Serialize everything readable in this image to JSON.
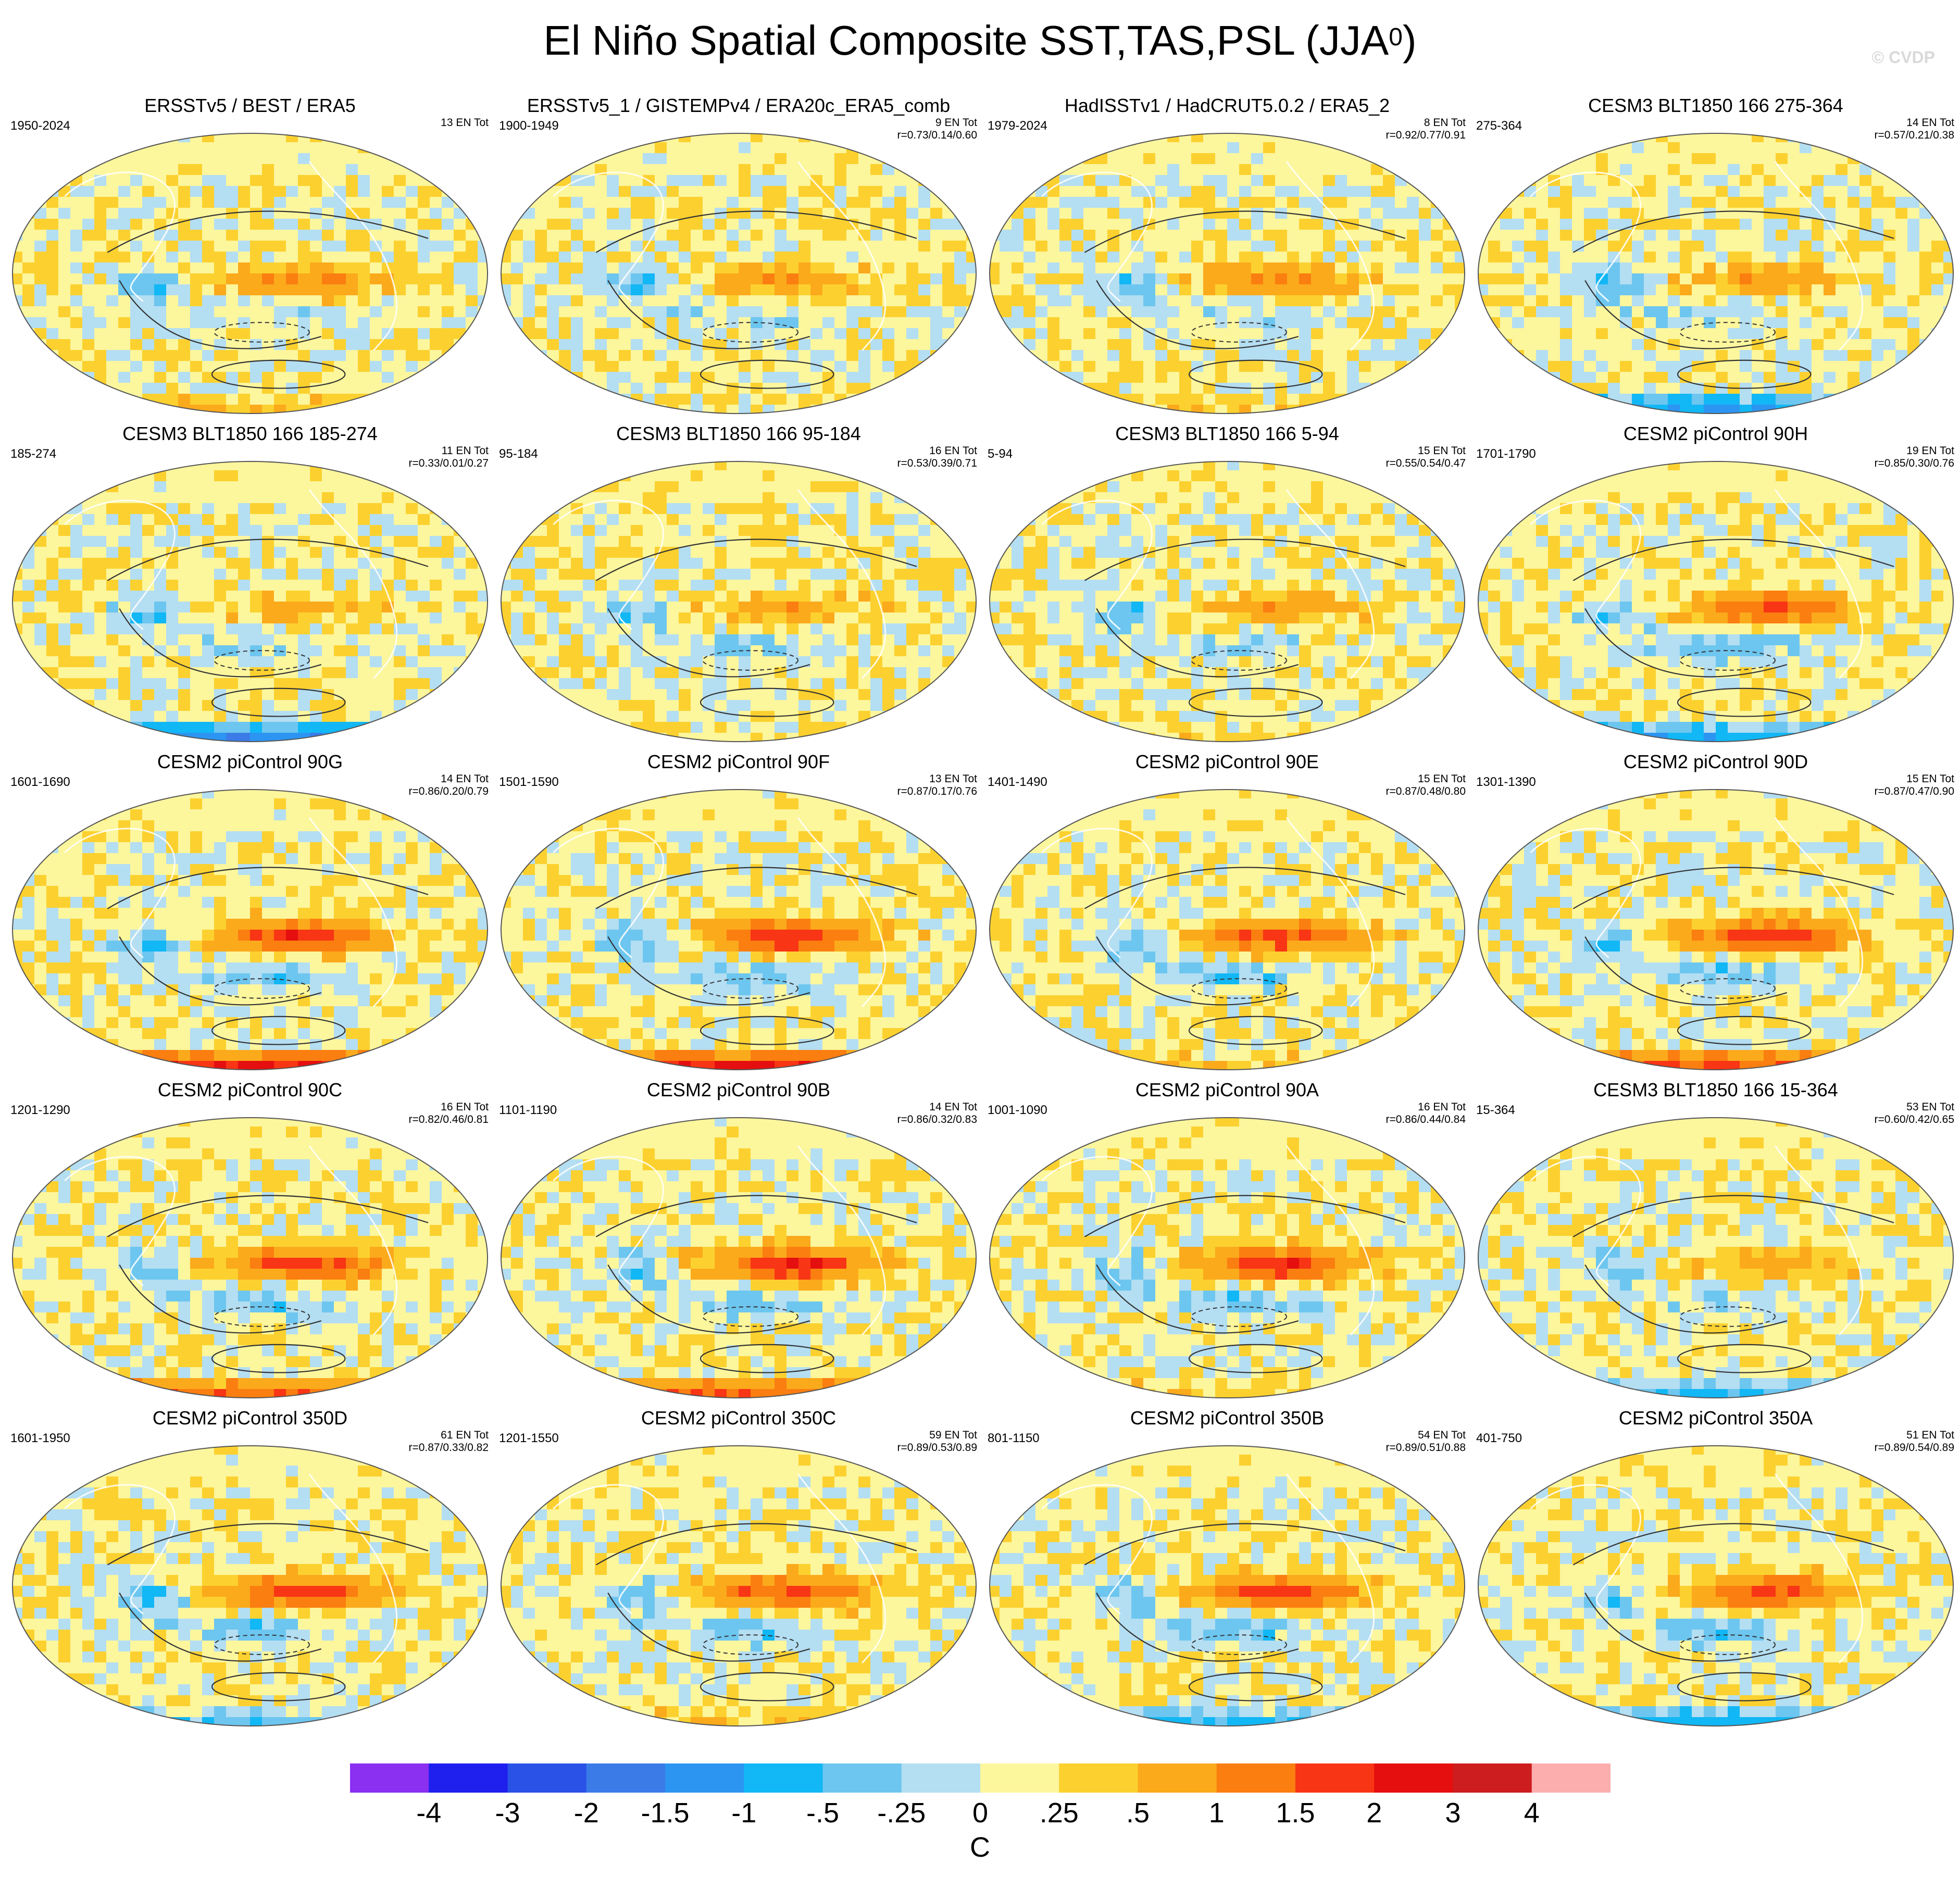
{
  "title": {
    "main": "El Niño Spatial Composite SST,TAS,PSL (JJA",
    "sup": "0",
    "close": ")"
  },
  "credit": "© CVDP",
  "colorbar": {
    "unit": "C",
    "labels": [
      "-4",
      "-3",
      "-2",
      "-1.5",
      "-1",
      "-.5",
      "-.25",
      "0",
      ".25",
      ".5",
      "1",
      "1.5",
      "2",
      "3",
      "4"
    ],
    "colors": [
      "#8b2ff0",
      "#1f1fee",
      "#2a52e6",
      "#3a7be8",
      "#2c95f2",
      "#12b7f5",
      "#6dc6ef",
      "#b4def2",
      "#fcf69d",
      "#fcd12f",
      "#fbaa1c",
      "#fb7e10",
      "#f83514",
      "#e50f0f",
      "#cd1d1f",
      "#fcaeaf"
    ]
  },
  "chart_data": [
    {
      "type": "heatmap",
      "title": "ERSSTv5 / BEST / ERA5",
      "period": "1950-2024",
      "count": "13 EN Tot",
      "corr": "",
      "pattern": 0.95,
      "southern": 0.3
    },
    {
      "type": "heatmap",
      "title": "ERSSTv5_1 / GISTEMPv4 / ERA20c_ERA5_comb",
      "period": "1900-1949",
      "count": "9 EN Tot",
      "corr": "r=0.73/0.14/0.60",
      "pattern": 0.75,
      "southern": 0.0
    },
    {
      "type": "heatmap",
      "title": "HadISSTv1 / HadCRUT5.0.2 / ERA5_2",
      "period": "1979-2024",
      "count": "8 EN Tot",
      "corr": "r=0.92/0.77/0.91",
      "pattern": 0.85,
      "southern": 0.2
    },
    {
      "type": "heatmap",
      "title": "CESM3 BLT1850 166 275-364",
      "period": "275-364",
      "count": "14 EN Tot",
      "corr": "r=0.57/0.21/0.38",
      "pattern": 0.7,
      "southern": -0.9
    },
    {
      "type": "heatmap",
      "title": "CESM3 BLT1850 166 185-274",
      "period": "185-274",
      "count": "11 EN Tot",
      "corr": "r=0.33/0.01/0.27",
      "pattern": 0.45,
      "southern": -1.2
    },
    {
      "type": "heatmap",
      "title": "CESM3 BLT1850 166 95-184",
      "period": "95-184",
      "count": "16 EN Tot",
      "corr": "r=0.53/0.39/0.71",
      "pattern": 0.6,
      "southern": 0.1
    },
    {
      "type": "heatmap",
      "title": "CESM3 BLT1850 166 5-94",
      "period": "5-94",
      "count": "15 EN Tot",
      "corr": "r=0.55/0.54/0.47",
      "pattern": 0.65,
      "southern": 0.1
    },
    {
      "type": "heatmap",
      "title": "CESM2 piControl 90H",
      "period": "1701-1790",
      "count": "19 EN Tot",
      "corr": "r=0.85/0.30/0.76",
      "pattern": 1.35,
      "southern": -0.8
    },
    {
      "type": "heatmap",
      "title": "CESM2 piControl 90G",
      "period": "1601-1690",
      "count": "14 EN Tot",
      "corr": "r=0.86/0.20/0.79",
      "pattern": 1.6,
      "southern": 1.5
    },
    {
      "type": "heatmap",
      "title": "CESM2 piControl 90F",
      "period": "1501-1590",
      "count": "13 EN Tot",
      "corr": "r=0.87/0.17/0.76",
      "pattern": 1.6,
      "southern": 1.6
    },
    {
      "type": "heatmap",
      "title": "CESM2 piControl 90E",
      "period": "1401-1490",
      "count": "15 EN Tot",
      "corr": "r=0.87/0.48/0.80",
      "pattern": 1.5,
      "southern": 0.2
    },
    {
      "type": "heatmap",
      "title": "CESM2 piControl 90D",
      "period": "1301-1390",
      "count": "15 EN Tot",
      "corr": "r=0.87/0.47/0.90",
      "pattern": 1.55,
      "southern": 1.2
    },
    {
      "type": "heatmap",
      "title": "CESM2 piControl 90C",
      "period": "1201-1290",
      "count": "16 EN Tot",
      "corr": "r=0.82/0.46/0.81",
      "pattern": 1.55,
      "southern": 1.0
    },
    {
      "type": "heatmap",
      "title": "CESM2 piControl 90B",
      "period": "1101-1190",
      "count": "14 EN Tot",
      "corr": "r=0.86/0.32/0.83",
      "pattern": 1.7,
      "southern": 1.1
    },
    {
      "type": "heatmap",
      "title": "CESM2 piControl 90A",
      "period": "1001-1090",
      "count": "16 EN Tot",
      "corr": "r=0.86/0.44/0.84",
      "pattern": 1.6,
      "southern": 0.2
    },
    {
      "type": "heatmap",
      "title": "CESM3 BLT1850 166 15-364",
      "period": "15-364",
      "count": "53 EN Tot",
      "corr": "r=0.60/0.42/0.65",
      "pattern": 0.6,
      "southern": -0.6
    },
    {
      "type": "heatmap",
      "title": "CESM2 piControl 350D",
      "period": "1601-1950",
      "count": "61 EN Tot",
      "corr": "r=0.87/0.33/0.82",
      "pattern": 1.45,
      "southern": -0.5
    },
    {
      "type": "heatmap",
      "title": "CESM2 piControl 350C",
      "period": "1201-1550",
      "count": "59 EN Tot",
      "corr": "r=0.89/0.53/0.89",
      "pattern": 1.45,
      "southern": 0.2
    },
    {
      "type": "heatmap",
      "title": "CESM2 piControl 350B",
      "period": "801-1150",
      "count": "54 EN Tot",
      "corr": "r=0.89/0.51/0.88",
      "pattern": 1.5,
      "southern": -0.6
    },
    {
      "type": "heatmap",
      "title": "CESM2 piControl 350A",
      "period": "401-750",
      "count": "51 EN Tot",
      "corr": "r=0.89/0.54/0.89",
      "pattern": 1.45,
      "southern": -0.7
    }
  ]
}
